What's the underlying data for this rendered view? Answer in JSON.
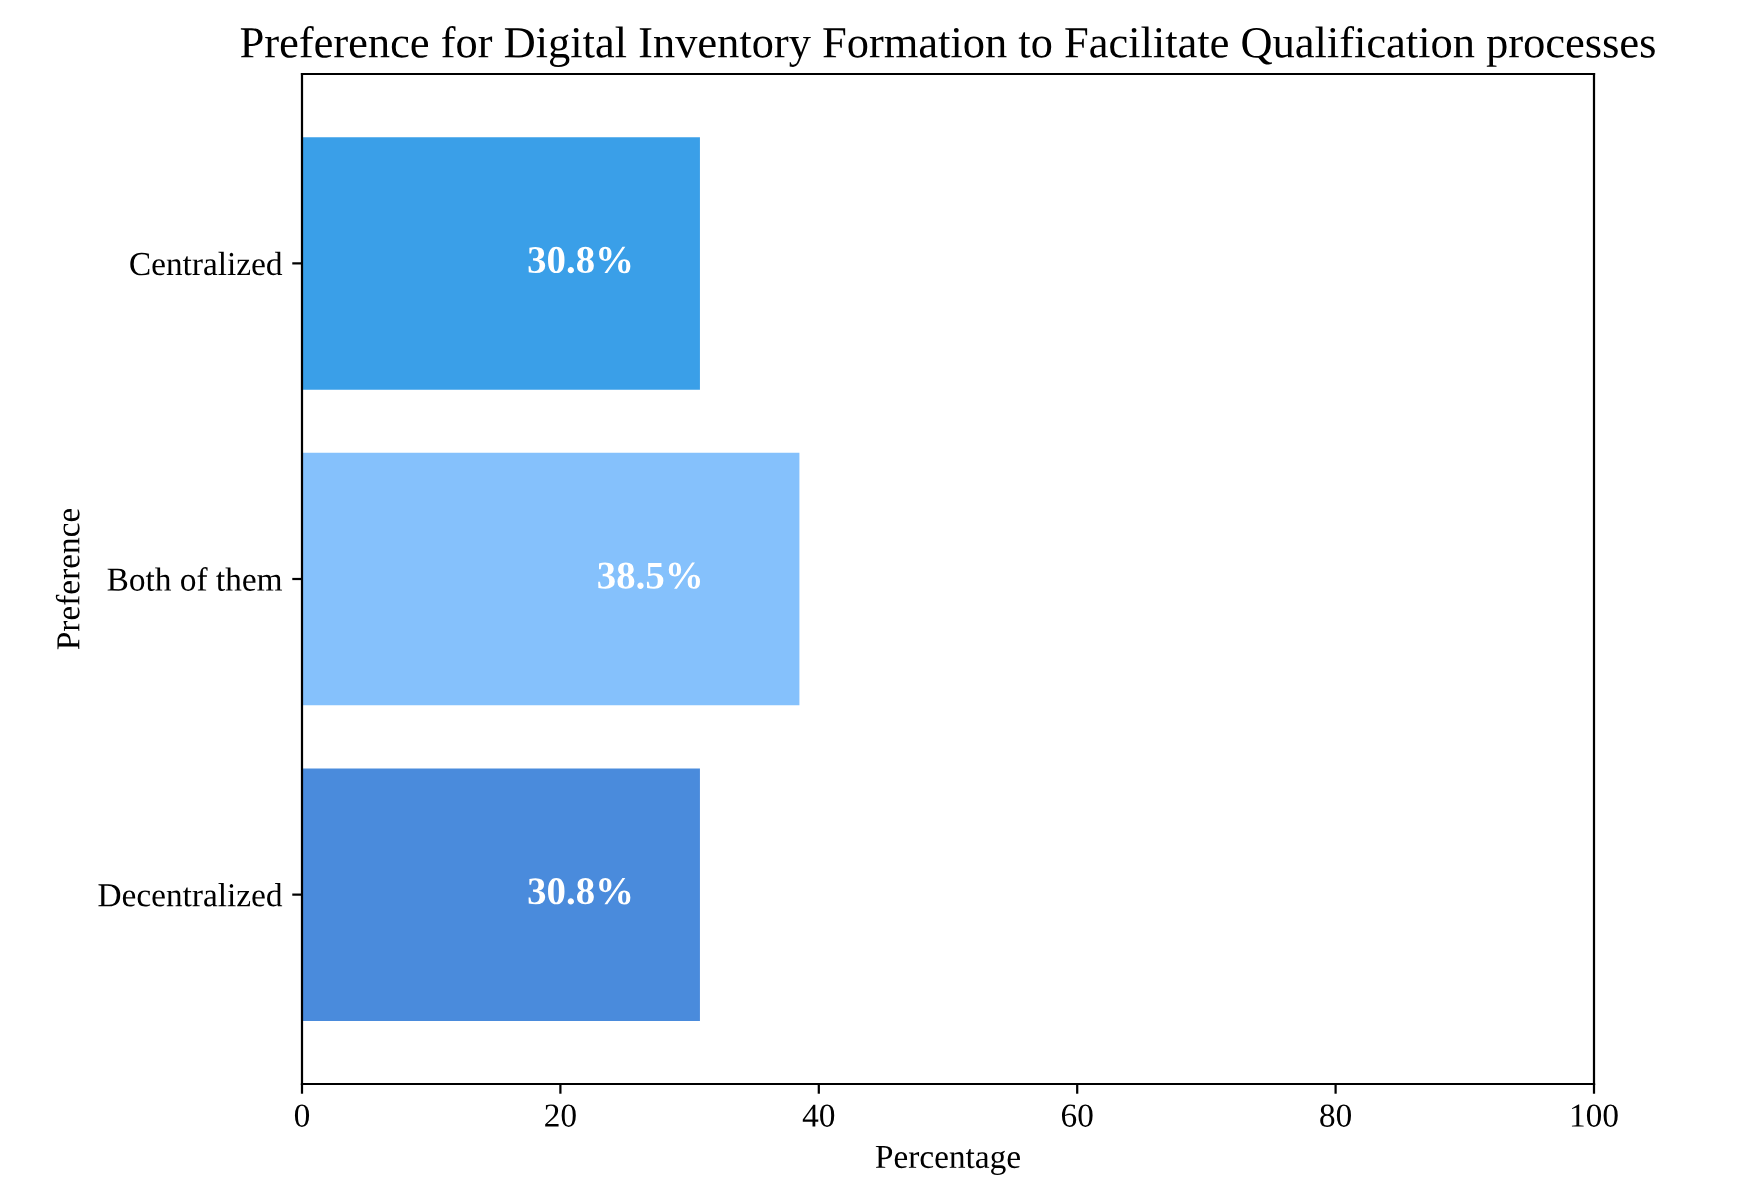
{
  "chart_data": {
    "type": "bar",
    "orientation": "horizontal",
    "title": "Preference for Digital Inventory Formation to Facilitate Qualification processes",
    "xlabel": "Percentage",
    "ylabel": "Preference",
    "categories": [
      "Centralized",
      "Both of them",
      "Decentralized"
    ],
    "values": [
      30.8,
      38.5,
      30.8
    ],
    "value_labels": [
      "30.8%",
      "38.5%",
      "30.8%"
    ],
    "colors": [
      "#3a9fe8",
      "#85c1fc",
      "#4a8bdc"
    ],
    "xlim": [
      0,
      100
    ],
    "xticks": [
      0,
      20,
      40,
      60,
      80,
      100
    ]
  }
}
